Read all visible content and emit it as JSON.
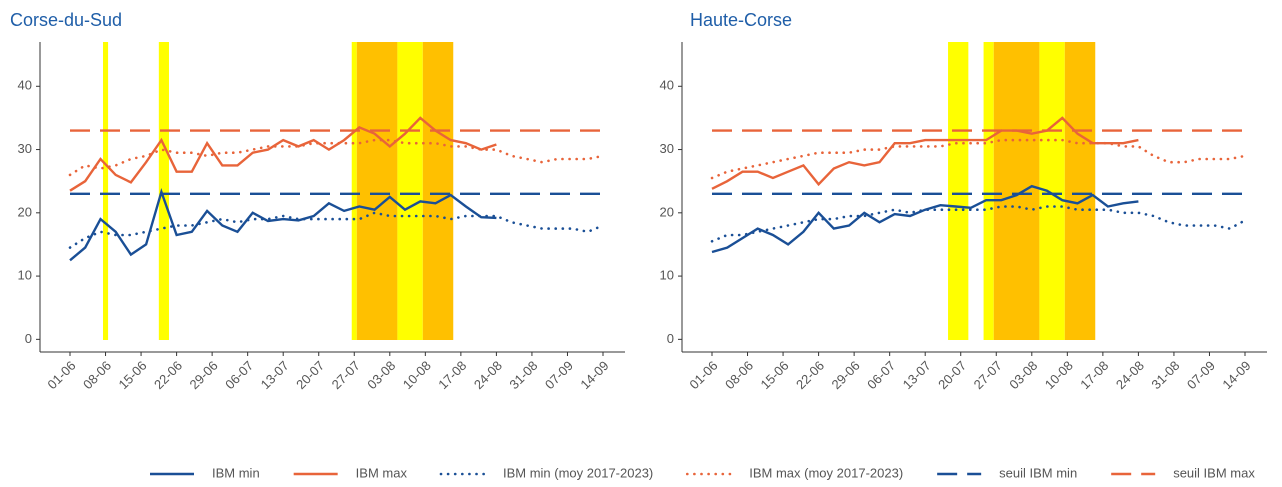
{
  "chart_data": [
    {
      "type": "line",
      "title": "Corse-du-Sud",
      "x": [
        "01-06",
        "04-06",
        "07-06",
        "10-06",
        "13-06",
        "16-06",
        "19-06",
        "22-06",
        "25-06",
        "28-06",
        "01-07",
        "04-07",
        "07-07",
        "10-07",
        "13-07",
        "16-07",
        "19-07",
        "22-07",
        "25-07",
        "28-07",
        "31-07",
        "03-08",
        "06-08",
        "09-08",
        "12-08",
        "15-08",
        "18-08",
        "21-08",
        "24-08",
        "27-08",
        "30-08",
        "02-09",
        "05-09",
        "08-09",
        "11-09",
        "14-09"
      ],
      "xticks": [
        "01-06",
        "08-06",
        "15-06",
        "22-06",
        "29-06",
        "06-07",
        "13-07",
        "20-07",
        "27-07",
        "03-08",
        "10-08",
        "17-08",
        "24-08",
        "31-08",
        "07-09",
        "14-09"
      ],
      "ylim": [
        -2,
        47
      ],
      "yticks": [
        0,
        10,
        20,
        30,
        40
      ],
      "bands": [
        {
          "start": "08-06",
          "end": "08-06",
          "color": "#ffff00"
        },
        {
          "start": "19-06",
          "end": "20-06",
          "color": "#ffff00"
        },
        {
          "start": "27-07",
          "end": "27-07",
          "color": "#ffff00"
        },
        {
          "start": "28-07",
          "end": "04-08",
          "color": "#ffc000"
        },
        {
          "start": "05-08",
          "end": "09-08",
          "color": "#ffff00"
        },
        {
          "start": "10-08",
          "end": "15-08",
          "color": "#ffc000"
        }
      ],
      "series": [
        {
          "name": "IBM min",
          "color": "#1a4f96",
          "style": "solid",
          "values": [
            12.5,
            14.5,
            19,
            17,
            13.4,
            15,
            23.3,
            16.5,
            17,
            20.3,
            18,
            17,
            20,
            18.7,
            19,
            18.8,
            19.5,
            21.5,
            20.3,
            21,
            20.5,
            22.5,
            20.5,
            21.8,
            21.5,
            22.8,
            21,
            19.3,
            19.2,
            null,
            null,
            null,
            null,
            null,
            null,
            null
          ]
        },
        {
          "name": "IBM max",
          "color": "#e8643a",
          "style": "solid",
          "values": [
            23.5,
            25,
            28.5,
            26,
            24.8,
            28,
            31.5,
            26.5,
            26.5,
            31,
            27.5,
            27.5,
            29.5,
            30,
            31.5,
            30.5,
            31.5,
            30,
            31.5,
            33.5,
            32.5,
            30.5,
            32.5,
            35,
            33,
            31.5,
            31,
            30,
            30.8,
            null,
            null,
            null,
            null,
            null,
            null,
            null
          ]
        },
        {
          "name": "IBM min (moy 2017-2023)",
          "color": "#1a4f96",
          "style": "dotted",
          "values": [
            14.5,
            16,
            17,
            16.5,
            16.5,
            17,
            17.5,
            18,
            18,
            18.5,
            19,
            18.5,
            19,
            19,
            19.5,
            19,
            19,
            19,
            19,
            19,
            20,
            19.5,
            19.5,
            19.5,
            19.5,
            19,
            19.5,
            19.5,
            19.5,
            18.5,
            18,
            17.5,
            17.5,
            17.5,
            17,
            18
          ]
        },
        {
          "name": "IBM max (moy 2017-2023)",
          "color": "#e8643a",
          "style": "dotted",
          "values": [
            26,
            27.5,
            27,
            27.5,
            28.5,
            29,
            30,
            29.5,
            29.5,
            29,
            29.5,
            29.5,
            30,
            30.5,
            30.5,
            30.5,
            31,
            31,
            31,
            31,
            31.5,
            31.5,
            31,
            31,
            31,
            30.5,
            30.5,
            30,
            30,
            29,
            28.5,
            28,
            28.5,
            28.5,
            28.5,
            29
          ]
        },
        {
          "name": "seuil IBM min",
          "color": "#1a4f96",
          "style": "dashed",
          "value": 23
        },
        {
          "name": "seuil IBM max",
          "color": "#e8643a",
          "style": "dashed",
          "value": 33
        }
      ]
    },
    {
      "type": "line",
      "title": "Haute-Corse",
      "x": [
        "01-06",
        "04-06",
        "07-06",
        "10-06",
        "13-06",
        "16-06",
        "19-06",
        "22-06",
        "25-06",
        "28-06",
        "01-07",
        "04-07",
        "07-07",
        "10-07",
        "13-07",
        "16-07",
        "19-07",
        "22-07",
        "25-07",
        "28-07",
        "31-07",
        "03-08",
        "06-08",
        "09-08",
        "12-08",
        "15-08",
        "18-08",
        "21-08",
        "24-08",
        "27-08",
        "30-08",
        "02-09",
        "05-09",
        "08-09",
        "11-09",
        "14-09"
      ],
      "xticks": [
        "01-06",
        "08-06",
        "15-06",
        "22-06",
        "29-06",
        "06-07",
        "13-07",
        "20-07",
        "27-07",
        "03-08",
        "10-08",
        "17-08",
        "24-08",
        "31-08",
        "07-09",
        "14-09"
      ],
      "ylim": [
        -2,
        47
      ],
      "yticks": [
        0,
        10,
        20,
        30,
        40
      ],
      "bands": [
        {
          "start": "18-07",
          "end": "21-07",
          "color": "#ffff00"
        },
        {
          "start": "25-07",
          "end": "26-07",
          "color": "#ffff00"
        },
        {
          "start": "27-07",
          "end": "04-08",
          "color": "#ffc000"
        },
        {
          "start": "05-08",
          "end": "09-08",
          "color": "#ffff00"
        },
        {
          "start": "10-08",
          "end": "15-08",
          "color": "#ffc000"
        }
      ],
      "series": [
        {
          "name": "IBM min",
          "color": "#1a4f96",
          "style": "solid",
          "values": [
            13.8,
            14.5,
            16,
            17.5,
            16.5,
            15,
            17,
            20,
            17.5,
            18,
            20,
            18.5,
            19.8,
            19.5,
            20.5,
            21.2,
            21,
            20.8,
            22,
            22,
            22.8,
            24.2,
            23.5,
            22,
            21.5,
            22.8,
            21,
            21.5,
            21.8,
            null,
            null,
            null,
            null,
            null,
            null,
            null
          ]
        },
        {
          "name": "IBM max",
          "color": "#e8643a",
          "style": "solid",
          "values": [
            23.8,
            25,
            26.5,
            26.5,
            25.5,
            26.5,
            27.5,
            24.5,
            27,
            28,
            27.5,
            28,
            31,
            31,
            31.5,
            31.5,
            31.5,
            31.5,
            31.5,
            33,
            33,
            32.5,
            33,
            35,
            32.5,
            31,
            31,
            31,
            31.5,
            null,
            null,
            null,
            null,
            null,
            null,
            null
          ]
        },
        {
          "name": "IBM min (moy 2017-2023)",
          "color": "#1a4f96",
          "style": "dotted",
          "values": [
            15.5,
            16.5,
            16.5,
            17,
            17.5,
            18,
            18.5,
            19,
            19,
            19.5,
            19.5,
            20,
            20.5,
            20,
            20.5,
            20.5,
            20.5,
            20.5,
            20.5,
            21,
            21,
            20.5,
            21,
            21,
            20.5,
            20.5,
            20.5,
            20,
            20,
            19.5,
            18.5,
            18,
            18,
            18,
            17.5,
            18.8
          ]
        },
        {
          "name": "IBM max (moy 2017-2023)",
          "color": "#e8643a",
          "style": "dotted",
          "values": [
            25.5,
            26.5,
            27,
            27.5,
            28,
            28.5,
            29,
            29.5,
            29.5,
            29.5,
            30,
            30,
            30.5,
            30.5,
            30.5,
            30.5,
            31,
            31,
            31,
            31.5,
            31.5,
            31.5,
            31.5,
            31.5,
            31,
            31,
            31,
            30.5,
            30.5,
            29,
            28,
            28,
            28.5,
            28.5,
            28.5,
            29
          ]
        },
        {
          "name": "seuil IBM min",
          "color": "#1a4f96",
          "style": "dashed",
          "value": 23
        },
        {
          "name": "seuil IBM max",
          "color": "#e8643a",
          "style": "dashed",
          "value": 33
        }
      ]
    }
  ]
}
